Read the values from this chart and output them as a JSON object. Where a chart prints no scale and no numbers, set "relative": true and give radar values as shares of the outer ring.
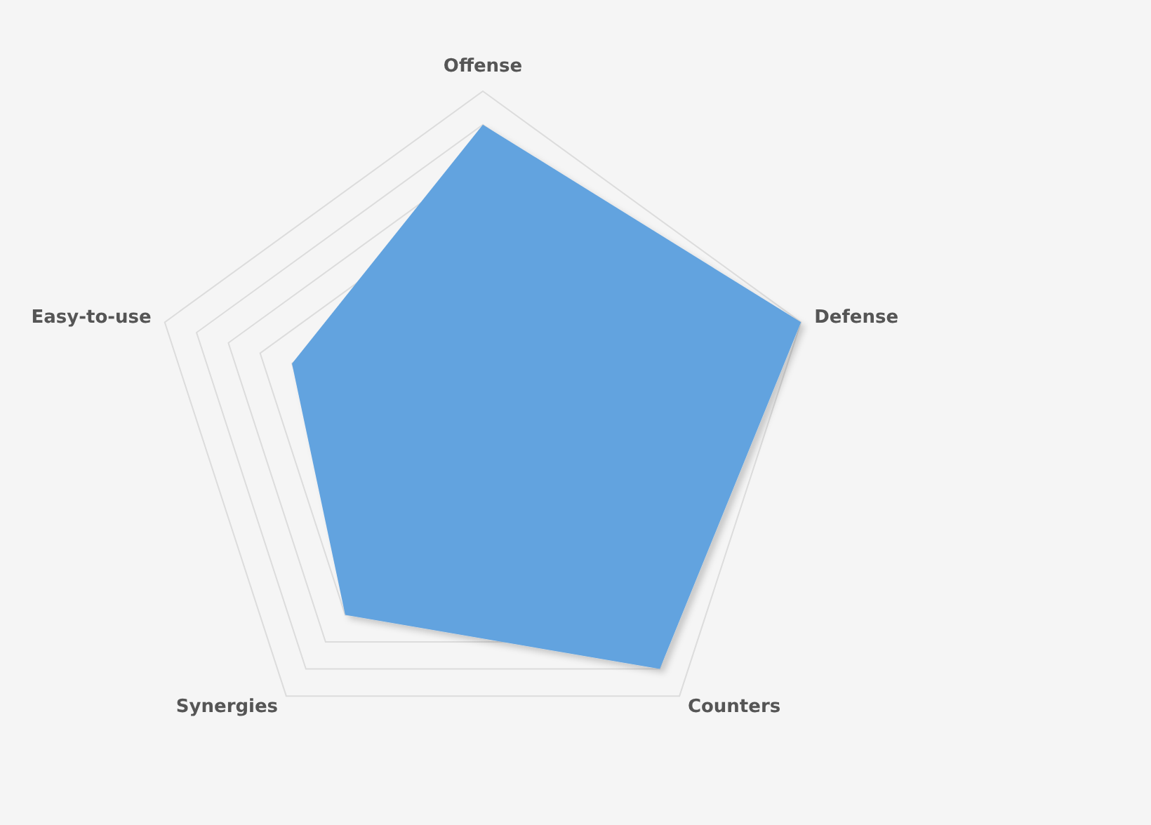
{
  "chart_data": {
    "type": "radar",
    "categories": [
      "Offense",
      "Defense",
      "Counters",
      "Synergies",
      "Easy-to-use"
    ],
    "relative": true,
    "grid": true,
    "series": [
      {
        "color": "#62a3df",
        "values": [
          0.9,
          1.0,
          0.9,
          0.7,
          0.6
        ]
      }
    ]
  }
}
